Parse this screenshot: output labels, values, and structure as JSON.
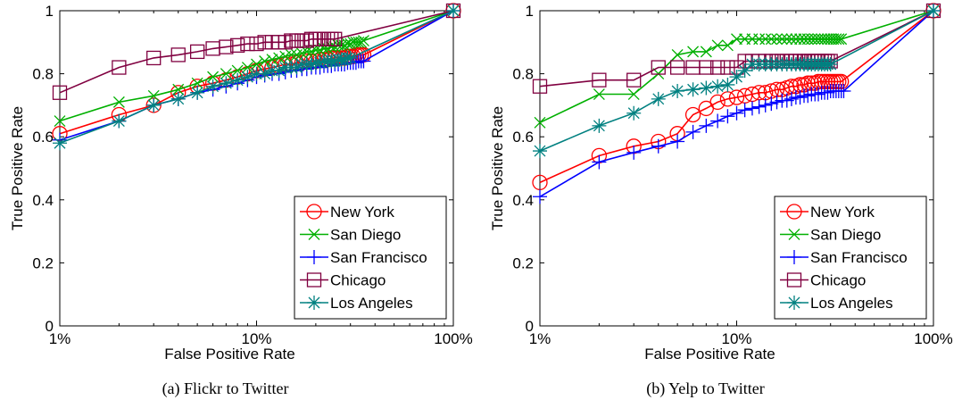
{
  "chart_data": [
    {
      "type": "line",
      "caption": "(a) Flickr to Twitter",
      "xlabel": "False Positive Rate",
      "ylabel": "True Positive Rate",
      "xscale": "log",
      "xlim": [
        0.01,
        1
      ],
      "ylim": [
        0,
        1
      ],
      "xticks": [
        {
          "value": 0.01,
          "label": "1%"
        },
        {
          "value": 0.1,
          "label": "10%"
        },
        {
          "value": 1,
          "label": "100%"
        }
      ],
      "yticks": [
        {
          "value": 0,
          "label": "0"
        },
        {
          "value": 0.2,
          "label": "0.2"
        },
        {
          "value": 0.4,
          "label": "0.4"
        },
        {
          "value": 0.6,
          "label": "0.6"
        },
        {
          "value": 0.8,
          "label": "0.8"
        },
        {
          "value": 1,
          "label": "1"
        }
      ],
      "grid": false,
      "legend_position": "bottom-right",
      "series": [
        {
          "name": "New York",
          "color": "#ff0000",
          "marker": "circle",
          "x": [
            0.01,
            0.02,
            0.03,
            0.04,
            0.05,
            0.06,
            0.07,
            0.08,
            0.09,
            0.1,
            0.11,
            0.12,
            0.13,
            0.14,
            0.15,
            0.16,
            0.17,
            0.18,
            0.19,
            0.2,
            0.21,
            0.22,
            0.23,
            0.24,
            0.25,
            0.26,
            0.27,
            0.28,
            0.29,
            0.3,
            0.31,
            0.32,
            0.33,
            0.34,
            0.35,
            1
          ],
          "y": [
            0.61,
            0.67,
            0.7,
            0.74,
            0.76,
            0.77,
            0.78,
            0.79,
            0.8,
            0.81,
            0.815,
            0.82,
            0.825,
            0.83,
            0.83,
            0.835,
            0.835,
            0.84,
            0.84,
            0.84,
            0.845,
            0.845,
            0.845,
            0.85,
            0.85,
            0.85,
            0.85,
            0.85,
            0.855,
            0.855,
            0.855,
            0.86,
            0.86,
            0.86,
            0.86,
            1
          ]
        },
        {
          "name": "San Diego",
          "color": "#00b000",
          "marker": "x",
          "x": [
            0.01,
            0.02,
            0.03,
            0.04,
            0.05,
            0.06,
            0.07,
            0.08,
            0.09,
            0.1,
            0.11,
            0.12,
            0.13,
            0.14,
            0.15,
            0.16,
            0.17,
            0.18,
            0.19,
            0.2,
            0.21,
            0.22,
            0.23,
            0.24,
            0.25,
            0.26,
            0.27,
            0.28,
            0.29,
            0.3,
            0.31,
            0.32,
            0.33,
            0.34,
            0.35,
            1
          ],
          "y": [
            0.65,
            0.71,
            0.73,
            0.75,
            0.77,
            0.79,
            0.8,
            0.81,
            0.82,
            0.83,
            0.84,
            0.845,
            0.85,
            0.855,
            0.86,
            0.86,
            0.865,
            0.87,
            0.87,
            0.875,
            0.875,
            0.88,
            0.88,
            0.885,
            0.885,
            0.89,
            0.89,
            0.89,
            0.895,
            0.895,
            0.9,
            0.9,
            0.9,
            0.9,
            0.905,
            1
          ]
        },
        {
          "name": "San Francisco",
          "color": "#0000ff",
          "marker": "plus",
          "x": [
            0.01,
            0.02,
            0.03,
            0.04,
            0.05,
            0.06,
            0.07,
            0.08,
            0.09,
            0.1,
            0.11,
            0.12,
            0.13,
            0.14,
            0.15,
            0.16,
            0.17,
            0.18,
            0.19,
            0.2,
            0.21,
            0.22,
            0.23,
            0.24,
            0.25,
            0.26,
            0.27,
            0.28,
            0.29,
            0.3,
            0.31,
            0.32,
            0.33,
            0.34,
            0.35,
            1
          ],
          "y": [
            0.59,
            0.65,
            0.7,
            0.72,
            0.74,
            0.75,
            0.76,
            0.77,
            0.78,
            0.79,
            0.795,
            0.8,
            0.8,
            0.805,
            0.81,
            0.81,
            0.815,
            0.815,
            0.82,
            0.82,
            0.82,
            0.825,
            0.825,
            0.825,
            0.83,
            0.83,
            0.83,
            0.83,
            0.835,
            0.835,
            0.835,
            0.835,
            0.84,
            0.84,
            0.84,
            1
          ]
        },
        {
          "name": "Chicago",
          "color": "#800040",
          "marker": "square",
          "x": [
            0.01,
            0.02,
            0.03,
            0.04,
            0.05,
            0.06,
            0.07,
            0.08,
            0.09,
            0.1,
            0.11,
            0.12,
            0.13,
            0.14,
            0.15,
            0.16,
            0.17,
            0.18,
            0.19,
            0.2,
            0.21,
            0.22,
            0.23,
            0.24,
            0.25,
            1
          ],
          "y": [
            0.74,
            0.82,
            0.85,
            0.86,
            0.87,
            0.88,
            0.885,
            0.89,
            0.895,
            0.895,
            0.9,
            0.9,
            0.9,
            0.9,
            0.905,
            0.905,
            0.905,
            0.905,
            0.91,
            0.91,
            0.91,
            0.91,
            0.91,
            0.91,
            0.91,
            1
          ]
        },
        {
          "name": "Los Angeles",
          "color": "#008080",
          "marker": "asterisk",
          "x": [
            0.01,
            0.02,
            0.03,
            0.04,
            0.05,
            0.06,
            0.07,
            0.08,
            0.09,
            0.1,
            0.11,
            0.12,
            0.13,
            0.14,
            0.15,
            0.16,
            0.17,
            0.18,
            0.19,
            0.2,
            0.21,
            0.22,
            0.23,
            0.24,
            0.25,
            0.26,
            0.27,
            0.28,
            0.29,
            0.3,
            1
          ],
          "y": [
            0.58,
            0.65,
            0.7,
            0.72,
            0.74,
            0.76,
            0.77,
            0.78,
            0.79,
            0.8,
            0.8,
            0.81,
            0.81,
            0.82,
            0.82,
            0.82,
            0.83,
            0.83,
            0.83,
            0.835,
            0.835,
            0.84,
            0.84,
            0.84,
            0.84,
            0.845,
            0.845,
            0.845,
            0.85,
            0.85,
            1
          ]
        }
      ]
    },
    {
      "type": "line",
      "caption": "(b) Yelp to Twitter",
      "xlabel": "False Positive Rate",
      "ylabel": "True Positive Rate",
      "xscale": "log",
      "xlim": [
        0.01,
        1
      ],
      "ylim": [
        0,
        1
      ],
      "xticks": [
        {
          "value": 0.01,
          "label": "1%"
        },
        {
          "value": 0.1,
          "label": "10%"
        },
        {
          "value": 1,
          "label": "100%"
        }
      ],
      "yticks": [
        {
          "value": 0,
          "label": "0"
        },
        {
          "value": 0.2,
          "label": "0.2"
        },
        {
          "value": 0.4,
          "label": "0.4"
        },
        {
          "value": 0.6,
          "label": "0.6"
        },
        {
          "value": 0.8,
          "label": "0.8"
        },
        {
          "value": 1,
          "label": "1"
        }
      ],
      "grid": false,
      "legend_position": "bottom-right",
      "series": [
        {
          "name": "New York",
          "color": "#ff0000",
          "marker": "circle",
          "x": [
            0.01,
            0.02,
            0.03,
            0.04,
            0.05,
            0.06,
            0.07,
            0.08,
            0.09,
            0.1,
            0.11,
            0.12,
            0.13,
            0.14,
            0.15,
            0.16,
            0.17,
            0.18,
            0.19,
            0.2,
            0.21,
            0.22,
            0.23,
            0.24,
            0.25,
            0.26,
            0.27,
            0.28,
            0.29,
            0.3,
            0.31,
            0.32,
            0.33,
            0.34,
            1
          ],
          "y": [
            0.455,
            0.54,
            0.57,
            0.585,
            0.61,
            0.67,
            0.69,
            0.71,
            0.72,
            0.725,
            0.73,
            0.735,
            0.74,
            0.74,
            0.745,
            0.75,
            0.75,
            0.755,
            0.76,
            0.76,
            0.765,
            0.765,
            0.77,
            0.77,
            0.77,
            0.775,
            0.775,
            0.775,
            0.775,
            0.775,
            0.775,
            0.775,
            0.775,
            0.775,
            1
          ]
        },
        {
          "name": "San Diego",
          "color": "#00b000",
          "marker": "x",
          "x": [
            0.01,
            0.02,
            0.03,
            0.04,
            0.05,
            0.06,
            0.07,
            0.08,
            0.09,
            0.1,
            0.11,
            0.12,
            0.13,
            0.14,
            0.15,
            0.16,
            0.17,
            0.18,
            0.19,
            0.2,
            0.21,
            0.22,
            0.23,
            0.24,
            0.25,
            0.26,
            0.27,
            0.28,
            0.29,
            0.3,
            0.31,
            0.32,
            0.33,
            0.34,
            1
          ],
          "y": [
            0.645,
            0.735,
            0.735,
            0.8,
            0.86,
            0.87,
            0.87,
            0.89,
            0.89,
            0.91,
            0.91,
            0.91,
            0.91,
            0.91,
            0.91,
            0.91,
            0.91,
            0.91,
            0.91,
            0.91,
            0.91,
            0.91,
            0.91,
            0.91,
            0.91,
            0.91,
            0.91,
            0.91,
            0.91,
            0.91,
            0.91,
            0.91,
            0.91,
            0.91,
            1
          ]
        },
        {
          "name": "San Francisco",
          "color": "#0000ff",
          "marker": "plus",
          "x": [
            0.01,
            0.02,
            0.03,
            0.04,
            0.05,
            0.06,
            0.07,
            0.08,
            0.09,
            0.1,
            0.11,
            0.12,
            0.13,
            0.14,
            0.15,
            0.16,
            0.17,
            0.18,
            0.19,
            0.2,
            0.21,
            0.22,
            0.23,
            0.24,
            0.25,
            0.26,
            0.27,
            0.28,
            0.29,
            0.3,
            0.31,
            0.32,
            0.33,
            0.34,
            0.35,
            1
          ],
          "y": [
            0.41,
            0.52,
            0.55,
            0.57,
            0.585,
            0.615,
            0.635,
            0.65,
            0.665,
            0.675,
            0.685,
            0.69,
            0.695,
            0.7,
            0.705,
            0.71,
            0.715,
            0.715,
            0.72,
            0.725,
            0.725,
            0.73,
            0.73,
            0.735,
            0.735,
            0.735,
            0.74,
            0.74,
            0.74,
            0.745,
            0.745,
            0.745,
            0.745,
            0.745,
            0.745,
            1
          ]
        },
        {
          "name": "Chicago",
          "color": "#800040",
          "marker": "square",
          "x": [
            0.01,
            0.02,
            0.03,
            0.04,
            0.05,
            0.06,
            0.07,
            0.08,
            0.09,
            0.1,
            0.11,
            0.12,
            0.13,
            0.14,
            0.15,
            0.16,
            0.17,
            0.18,
            0.19,
            0.2,
            0.21,
            0.22,
            0.23,
            0.24,
            0.25,
            0.26,
            0.27,
            0.28,
            0.29,
            0.3,
            1
          ],
          "y": [
            0.76,
            0.78,
            0.78,
            0.82,
            0.82,
            0.82,
            0.82,
            0.82,
            0.82,
            0.82,
            0.84,
            0.84,
            0.84,
            0.84,
            0.84,
            0.84,
            0.84,
            0.84,
            0.84,
            0.84,
            0.84,
            0.84,
            0.84,
            0.84,
            0.84,
            0.84,
            0.84,
            0.84,
            0.84,
            0.84,
            1
          ]
        },
        {
          "name": "Los Angeles",
          "color": "#008080",
          "marker": "asterisk",
          "x": [
            0.01,
            0.02,
            0.03,
            0.04,
            0.05,
            0.06,
            0.07,
            0.08,
            0.09,
            0.1,
            0.11,
            0.12,
            0.13,
            0.14,
            0.15,
            0.16,
            0.17,
            0.18,
            0.19,
            0.2,
            0.21,
            0.22,
            0.23,
            0.24,
            0.25,
            0.26,
            0.27,
            0.28,
            0.29,
            0.3,
            1
          ],
          "y": [
            0.555,
            0.635,
            0.675,
            0.72,
            0.745,
            0.75,
            0.755,
            0.76,
            0.765,
            0.79,
            0.81,
            0.83,
            0.83,
            0.83,
            0.83,
            0.83,
            0.83,
            0.83,
            0.83,
            0.83,
            0.83,
            0.83,
            0.83,
            0.83,
            0.83,
            0.83,
            0.83,
            0.83,
            0.83,
            0.83,
            1
          ]
        }
      ]
    }
  ]
}
